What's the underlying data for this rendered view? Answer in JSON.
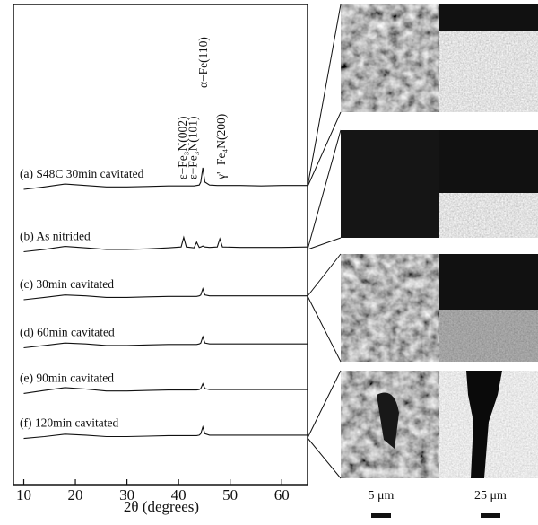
{
  "chart_data": {
    "type": "line",
    "xlabel": "2θ (degrees)",
    "xlim": [
      8,
      65
    ],
    "xticks": [
      10,
      20,
      30,
      40,
      50,
      60
    ],
    "ylim": [
      0,
      100
    ],
    "x": [
      10,
      14,
      18,
      22,
      26,
      30,
      34,
      38,
      40.5,
      41,
      41.5,
      43,
      43.5,
      44,
      44.3,
      44.7,
      45.1,
      46,
      47.5,
      48,
      48.5,
      52,
      56,
      60,
      65
    ],
    "series": [
      {
        "name": "(a) S48C 30min cavitated",
        "color": "#111111",
        "values": [
          61.5,
          62,
          62.6,
          62.3,
          62,
          62,
          62.1,
          62.2,
          62.2,
          62.2,
          62.2,
          62.2,
          62.3,
          62.4,
          63,
          66,
          63,
          62.4,
          62.3,
          62.3,
          62.3,
          62.3,
          62.2,
          62.3,
          62.3
        ]
      },
      {
        "name": "(b) As nitrided",
        "color": "#111111",
        "values": [
          48.5,
          49,
          49.6,
          49.3,
          49,
          49,
          49.1,
          49.3,
          49.5,
          51.5,
          49.5,
          49.3,
          50.5,
          49.4,
          49.5,
          49.7,
          49.5,
          49.4,
          49.5,
          51.2,
          49.5,
          49.4,
          49.4,
          49.4,
          49.5
        ]
      },
      {
        "name": "(c) 30min cavitated",
        "color": "#111111",
        "values": [
          38.5,
          39,
          39.5,
          39.3,
          39,
          39,
          39.1,
          39.2,
          39.2,
          39.2,
          39.2,
          39.2,
          39.2,
          39.3,
          39.5,
          40.8,
          39.5,
          39.3,
          39.3,
          39.3,
          39.3,
          39.3,
          39.3,
          39.3,
          39.3
        ]
      },
      {
        "name": "(d) 60min cavitated",
        "color": "#111111",
        "values": [
          28.5,
          29,
          29.5,
          29.3,
          29,
          29,
          29.1,
          29.2,
          29.2,
          29.2,
          29.2,
          29.2,
          29.2,
          29.3,
          29.5,
          30.8,
          29.5,
          29.3,
          29.3,
          29.3,
          29.3,
          29.3,
          29.3,
          29.3,
          29.3
        ]
      },
      {
        "name": "(e) 90min cavitated",
        "color": "#111111",
        "values": [
          19,
          19.6,
          20.2,
          19.9,
          19.5,
          19.5,
          19.6,
          19.7,
          19.7,
          19.7,
          19.7,
          19.7,
          19.7,
          19.8,
          20,
          21,
          20,
          19.8,
          19.8,
          19.8,
          19.8,
          19.8,
          19.8,
          19.8,
          19.8
        ]
      },
      {
        "name": "(f) 120min cavitated",
        "color": "#111111",
        "values": [
          9.6,
          10,
          10.5,
          10.3,
          10,
          10,
          10.1,
          10.2,
          10.2,
          10.2,
          10.2,
          10.2,
          10.2,
          10.3,
          10.6,
          12,
          10.6,
          10.3,
          10.3,
          10.3,
          10.3,
          10.3,
          10.3,
          10.3,
          10.3
        ]
      }
    ],
    "annotations": [
      {
        "text": "ε−Fe₃N(002)",
        "x": 41.5
      },
      {
        "text": "ε−Fe₃N(101)",
        "x": 43.5
      },
      {
        "text": "α−Fe(110)",
        "x": 45.5
      },
      {
        "text": "γ'−Fe₄N(200)",
        "x": 49
      }
    ]
  },
  "images": {
    "scale_labels": [
      "5 μm",
      "25 μm"
    ]
  }
}
